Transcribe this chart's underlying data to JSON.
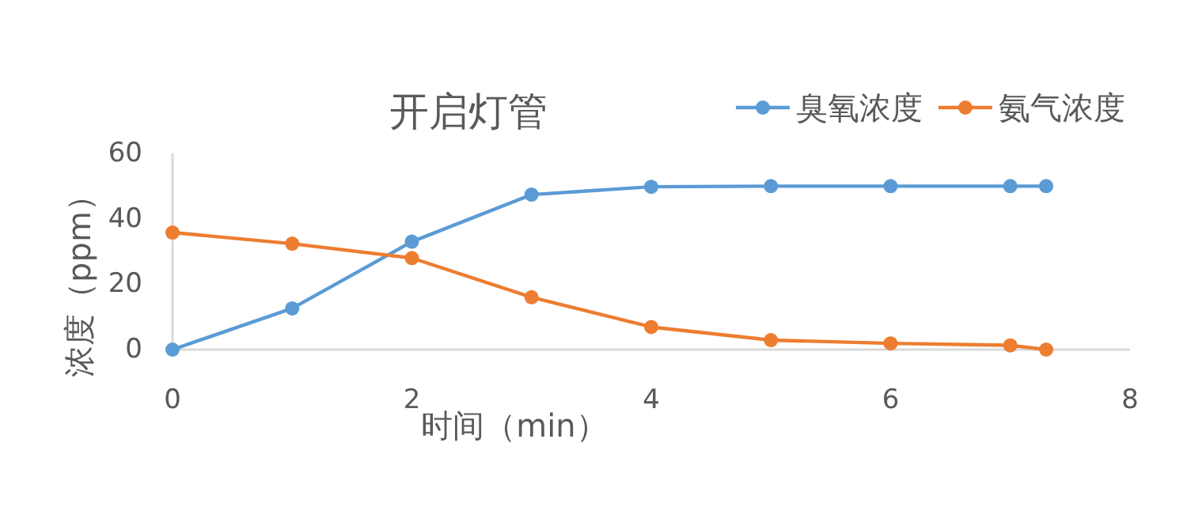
{
  "chart_data": {
    "type": "line",
    "title": "开启灯管",
    "xlabel": "时间（min）",
    "ylabel": "浓度（ppm）",
    "x": [
      0,
      1,
      2,
      3,
      4,
      5,
      6,
      7,
      7.3
    ],
    "series": [
      {
        "name": "臭氧浓度",
        "color": "#5b9bd5",
        "values": [
          0,
          12.6,
          33,
          47.4,
          49.8,
          50,
          50,
          50,
          50
        ]
      },
      {
        "name": "氨气浓度",
        "color": "#ed7d31",
        "values": [
          35.8,
          32.4,
          28,
          16,
          6.9,
          2.9,
          1.9,
          1.3,
          0
        ]
      }
    ],
    "xlim": [
      0,
      8
    ],
    "ylim": [
      0,
      60
    ],
    "xticks": [
      0,
      2,
      4,
      6,
      8
    ],
    "yticks": [
      0,
      20,
      40,
      60
    ],
    "legend": "top right",
    "marker": "circle",
    "line_style": "solid"
  }
}
